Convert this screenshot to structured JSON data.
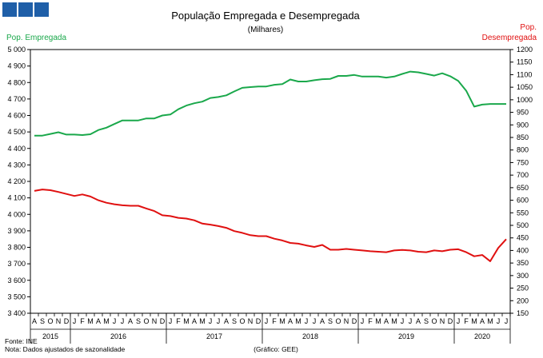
{
  "brand": {
    "logo_color": "#1f5fa8",
    "logo_squares": 3
  },
  "chart_data": {
    "type": "line",
    "title": "População Empregada e Desempregada",
    "subtitle": "(Milhares)",
    "left_axis_label": "Pop. Empregada",
    "right_axis_label_line1": "Pop.",
    "right_axis_label_line2": "Desempregada",
    "left_ylim": [
      3400,
      5000
    ],
    "left_ticks": [
      "3 400",
      "3 500",
      "3 600",
      "3 700",
      "3 800",
      "3 900",
      "4 000",
      "4 100",
      "4 200",
      "4 300",
      "4 400",
      "4 500",
      "4 600",
      "4 700",
      "4 800",
      "4 900",
      "5 000"
    ],
    "right_ylim": [
      150,
      1200
    ],
    "right_ticks": [
      "150",
      "200",
      "250",
      "300",
      "350",
      "400",
      "450",
      "500",
      "550",
      "600",
      "650",
      "700",
      "750",
      "800",
      "850",
      "900",
      "950",
      "1000",
      "1050",
      "1100",
      "1150",
      "1200"
    ],
    "months": [
      "A",
      "S",
      "O",
      "N",
      "D",
      "J",
      "F",
      "M",
      "A",
      "M",
      "J",
      "J",
      "A",
      "S",
      "O",
      "N",
      "D",
      "J",
      "F",
      "M",
      "A",
      "M",
      "J",
      "J",
      "A",
      "S",
      "O",
      "N",
      "D",
      "J",
      "F",
      "M",
      "A",
      "M",
      "J",
      "J",
      "A",
      "S",
      "O",
      "N",
      "D",
      "J",
      "F",
      "M",
      "A",
      "M",
      "J",
      "J",
      "A",
      "S",
      "O",
      "N",
      "D",
      "J",
      "F",
      "M",
      "A",
      "M",
      "J",
      "J"
    ],
    "years": [
      {
        "label": "2015",
        "start": 0,
        "end": 5
      },
      {
        "label": "2016",
        "start": 5,
        "end": 17
      },
      {
        "label": "2017",
        "start": 17,
        "end": 29
      },
      {
        "label": "2018",
        "start": 29,
        "end": 41
      },
      {
        "label": "2019",
        "start": 41,
        "end": 53
      },
      {
        "label": "2020",
        "start": 53,
        "end": 60
      }
    ],
    "series": [
      {
        "name": "Pop. Empregada",
        "axis": "left",
        "color": "#1aa84b",
        "values": [
          4478,
          4478,
          4488,
          4498,
          4484,
          4484,
          4481,
          4486,
          4512,
          4526,
          4548,
          4570,
          4570,
          4570,
          4582,
          4582,
          4600,
          4606,
          4638,
          4660,
          4674,
          4684,
          4706,
          4712,
          4722,
          4746,
          4768,
          4772,
          4776,
          4776,
          4786,
          4790,
          4818,
          4806,
          4806,
          4814,
          4820,
          4822,
          4840,
          4840,
          4846,
          4836,
          4836,
          4836,
          4830,
          4836,
          4852,
          4866,
          4862,
          4852,
          4842,
          4856,
          4838,
          4810,
          4750,
          4654,
          4666,
          4670,
          4670,
          4670
        ]
      },
      {
        "name": "Pop. Desempregada",
        "axis": "right",
        "color": "#e01010",
        "values": [
          637,
          643,
          640,
          633,
          625,
          617,
          623,
          615,
          600,
          590,
          584,
          580,
          578,
          578,
          567,
          557,
          540,
          537,
          530,
          527,
          520,
          507,
          503,
          497,
          490,
          477,
          470,
          461,
          457,
          457,
          447,
          440,
          430,
          427,
          420,
          414,
          422,
          403,
          403,
          406,
          403,
          400,
          397,
          395,
          393,
          400,
          402,
          400,
          395,
          393,
          400,
          397,
          403,
          405,
          393,
          377,
          382,
          357,
          410,
          445
        ]
      }
    ],
    "source_note": "Fonte: INE",
    "note": "Nota: Dados ajustados de sazonalidade",
    "credit": "(Gráfico: GEE)"
  }
}
